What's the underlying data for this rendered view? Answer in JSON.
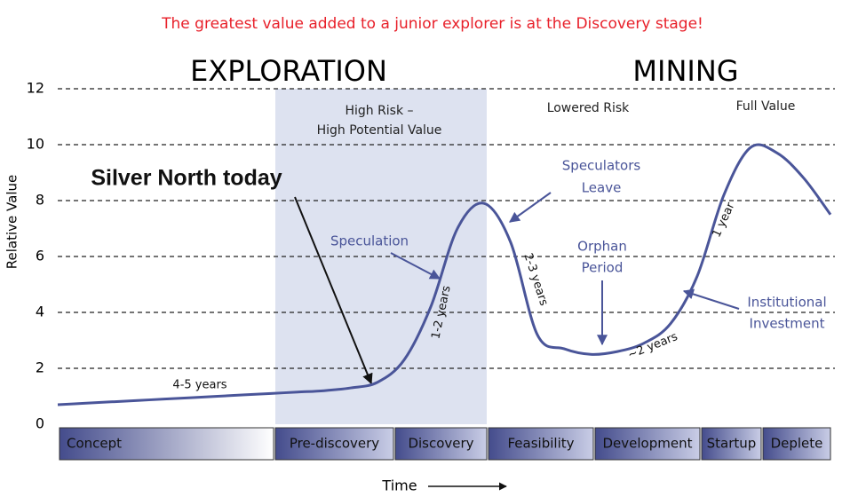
{
  "chart_data": {
    "type": "line",
    "title": "The greatest value added to a junior explorer is at the Discovery stage!",
    "section_labels": [
      "EXPLORATION",
      "MINING"
    ],
    "y_label": "Relative Value",
    "x_label": "Time",
    "ylim": [
      0,
      12
    ],
    "yticks": [
      0,
      2,
      4,
      6,
      8,
      10,
      12
    ],
    "grid": true,
    "categories": [
      null,
      null,
      null,
      null,
      null,
      null,
      null,
      null,
      null,
      null,
      null,
      null,
      null,
      null,
      null,
      null,
      null,
      null,
      null,
      null,
      null,
      null,
      null,
      null,
      null,
      null,
      null,
      null,
      null,
      null
    ],
    "series": [
      {
        "color": "#4a5599",
        "values": [
          0.7,
          0.75,
          0.8,
          0.85,
          0.9,
          0.95,
          1.0,
          1.05,
          1.1,
          1.15,
          1.2,
          1.3,
          1.5,
          2.3,
          4.2,
          7.0,
          7.9,
          6.5,
          3.2,
          2.7,
          2.5,
          2.6,
          2.9,
          3.6,
          5.3,
          8.2,
          9.9,
          9.7,
          8.8,
          7.5
        ]
      }
    ],
    "phases": [
      "Concept",
      "Pre-discovery",
      "Discovery",
      "Feasibility",
      "Development",
      "Startup",
      "Deplete"
    ],
    "annotations": [
      "High Risk –",
      "High Potential Value",
      "Lowered Risk",
      "Full Value",
      "Silver North today",
      "Speculation",
      "Speculators",
      "Leave",
      "Orphan",
      "Period",
      "Institutional",
      "Investment",
      "4-5 years",
      "1-2 years",
      "2-3 years",
      "~2 years",
      "1 year"
    ]
  }
}
